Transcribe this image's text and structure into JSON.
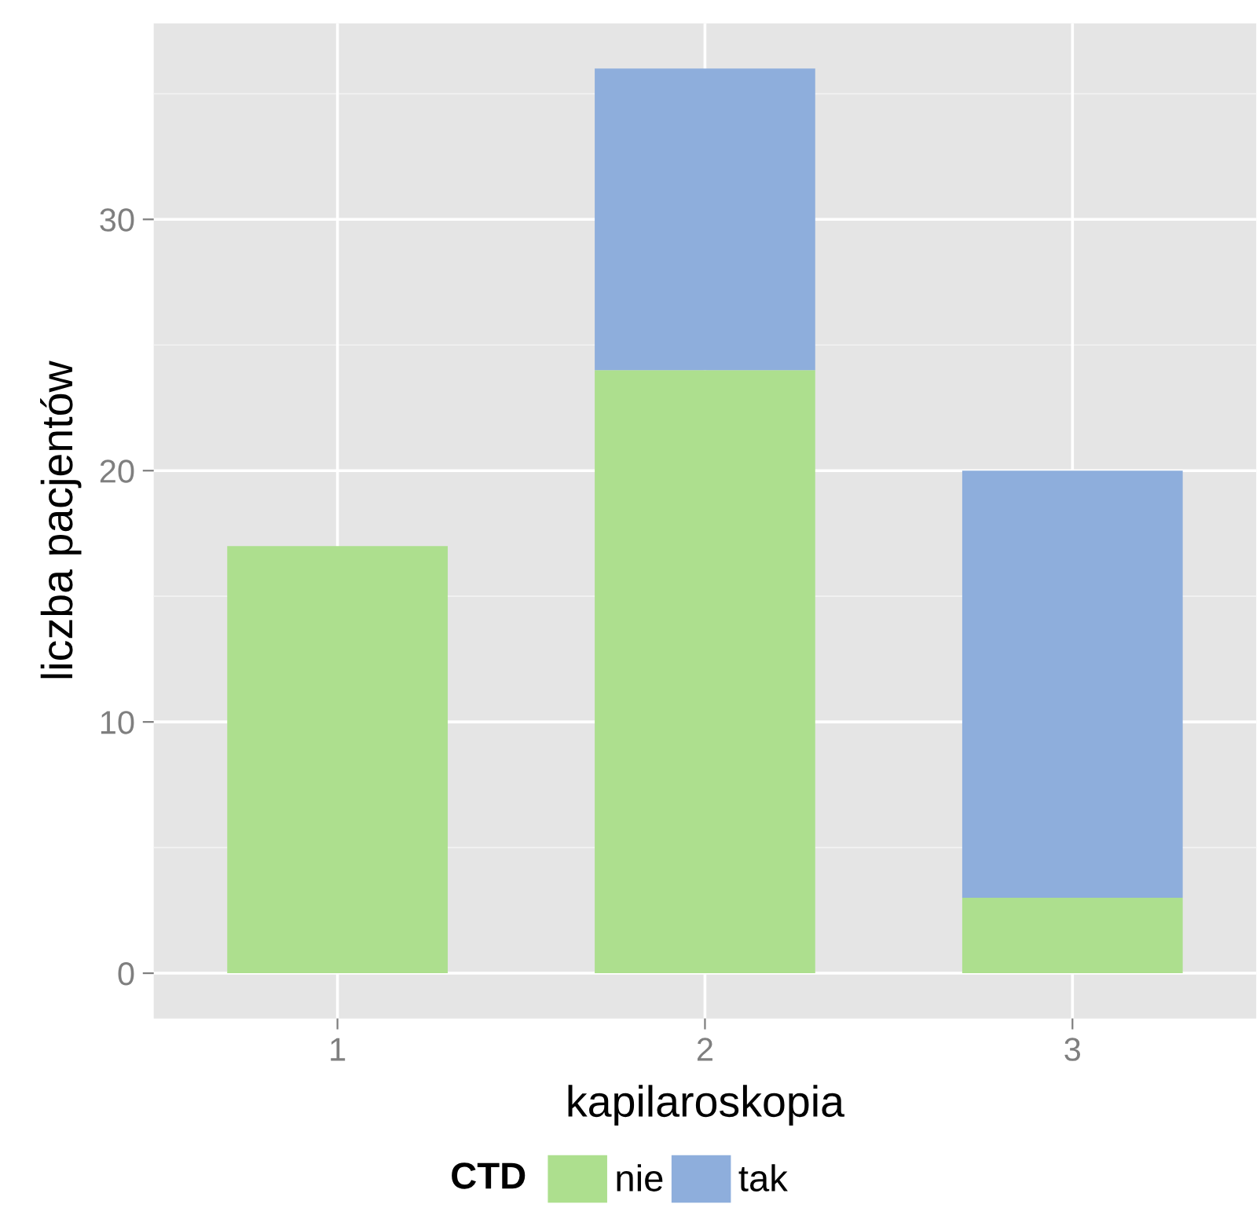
{
  "chart_data": {
    "type": "bar",
    "stacked": true,
    "xlabel": "kapilaroskopia",
    "ylabel": "liczba pacjentów",
    "legend_title": "CTD",
    "categories": [
      "1",
      "2",
      "3"
    ],
    "series": [
      {
        "name": "nie",
        "color": "#addf8e",
        "values": [
          17,
          24,
          3
        ]
      },
      {
        "name": "tak",
        "color": "#8eaedc",
        "values": [
          0,
          12,
          17
        ]
      }
    ],
    "ylim": [
      -1.8,
      37.8
    ],
    "yticks": [
      0,
      10,
      20,
      30
    ],
    "grid": true,
    "legend": "bottom"
  }
}
